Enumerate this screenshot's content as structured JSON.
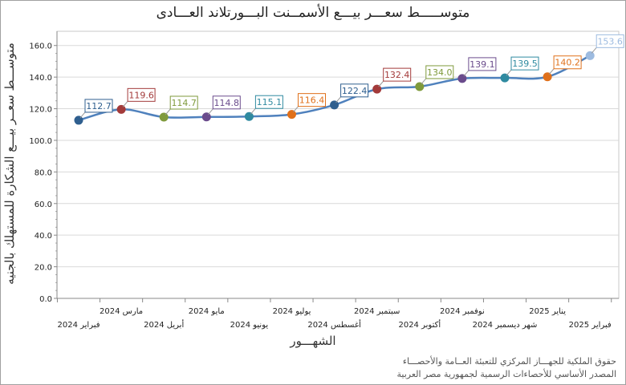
{
  "chart_data": {
    "type": "line",
    "title": "متوســـــط سعـــر بيـــع الأسمــنت البـــورتلاند العـــادى",
    "xlabel": "الشهـــور",
    "ylabel": "متوســـط سعــر بيـــع الشكارة للمستهلك بالجنيه",
    "categories": [
      "فبراير 2024",
      "مارس 2024",
      "أبريل 2024",
      "مايو 2024",
      "يونيو 2024",
      "يوليو 2024",
      "أغسطس 2024",
      "سبتمبر 2024",
      "أكتوبر 2024",
      "نوفمبر 2024",
      "شهر ديسمبر 2024",
      "يناير 2025",
      "فبراير 2025"
    ],
    "values": [
      112.7,
      119.6,
      114.7,
      114.8,
      115.1,
      116.4,
      122.4,
      132.4,
      134.0,
      139.1,
      139.5,
      140.2,
      153.6
    ],
    "value_labels": [
      "112.7",
      "119.6",
      "114.7",
      "114.8",
      "115.1",
      "116.4",
      "122.4",
      "132.4",
      "134.0",
      "139.1",
      "139.5",
      "140.2",
      "153.6"
    ],
    "point_colors": [
      "#2f5f8f",
      "#a33a3a",
      "#7f9a3c",
      "#6a4b8c",
      "#2f8aa0",
      "#e0701a",
      "#2f5f8f",
      "#a33a3a",
      "#7f9a3c",
      "#6a4b8c",
      "#2f8aa0",
      "#e0701a",
      "#9dbbe0"
    ],
    "line_color": "#4f81bd",
    "yticks": [
      "0.0",
      "20.0",
      "40.0",
      "60.0",
      "80.0",
      "100.0",
      "120.0",
      "140.0",
      "160.0"
    ],
    "ylim": [
      0,
      169
    ],
    "grid": "horizontal",
    "legend": "none"
  },
  "footer": {
    "line1": "حقوق الملكية للجهـــاز المركزي للتعبئة العــامة والأحصـــاء",
    "line2": "المصدر الأساسي للأحصاءات الرسمية لجمهورية مصر العربية"
  }
}
